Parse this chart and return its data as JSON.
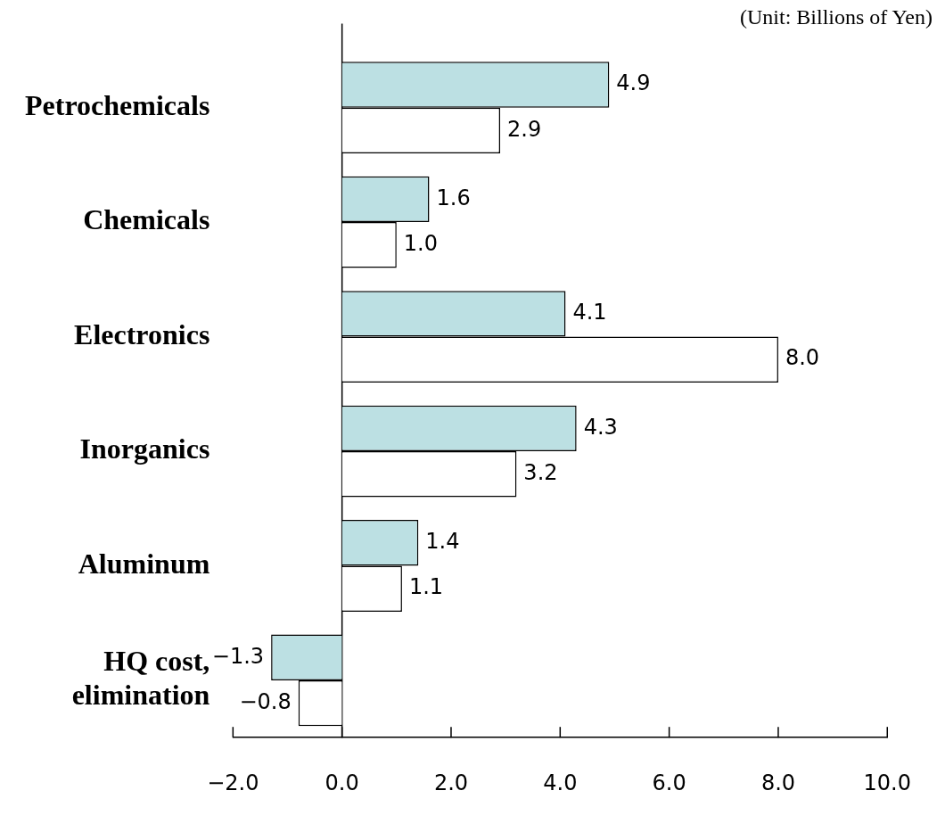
{
  "chart_data": {
    "type": "bar",
    "orientation": "horizontal",
    "categories": [
      "Petrochemicals",
      "Chemicals",
      "Electronics",
      "Inorganics",
      "Aluminum",
      "HQ cost, elimination"
    ],
    "series": [
      {
        "color": "#bce0e3",
        "values": [
          4.9,
          1.6,
          4.1,
          4.3,
          1.4,
          -1.3
        ],
        "value_labels": [
          "4.9",
          "1.6",
          "4.1",
          "4.3",
          "1.4",
          "−1.3"
        ]
      },
      {
        "color": "#ffffff",
        "values": [
          2.9,
          1.0,
          8.0,
          3.2,
          1.1,
          -0.8
        ],
        "value_labels": [
          "2.9",
          "1.0",
          "8.0",
          "3.2",
          "1.1",
          "−0.8"
        ]
      }
    ],
    "xlim": [
      -2,
      10
    ],
    "xticks": [
      {
        "value": -2,
        "label": "−2.0"
      },
      {
        "value": 0,
        "label": "0.0"
      },
      {
        "value": 2,
        "label": "2.0"
      },
      {
        "value": 4,
        "label": "4.0"
      },
      {
        "value": 6,
        "label": "6.0"
      },
      {
        "value": 8,
        "label": "8.0"
      },
      {
        "value": 10,
        "label": "10.0"
      }
    ],
    "annotations": [
      "(Unit: Billions of Yen)"
    ]
  }
}
